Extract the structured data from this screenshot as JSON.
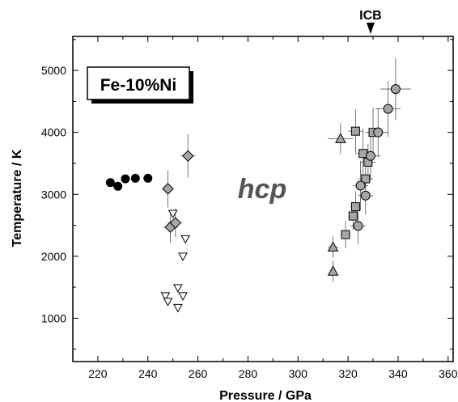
{
  "chart_data": {
    "type": "scatter",
    "xlabel": "Pressure / GPa",
    "ylabel": "Temperature / K",
    "xlim": [
      210,
      362
    ],
    "ylim": [
      300,
      5550
    ],
    "x_ticks": [
      220,
      240,
      260,
      280,
      300,
      320,
      340,
      360
    ],
    "y_ticks": [
      1000,
      2000,
      3000,
      4000,
      5000
    ],
    "grid": false,
    "legend": "none",
    "annotations": {
      "sample_box": "Fe-10%Ni",
      "phase_label": "hcp",
      "marker_label": "ICB",
      "marker_x": 329
    },
    "series": [
      {
        "marker": "filled-circle",
        "color": "#000000",
        "points": [
          {
            "x": 225,
            "y": 3190
          },
          {
            "x": 228,
            "y": 3130
          },
          {
            "x": 231,
            "y": 3250
          },
          {
            "x": 235,
            "y": 3260
          },
          {
            "x": 240,
            "y": 3260
          }
        ]
      },
      {
        "marker": "diamond",
        "color": "#a6a6a6",
        "points": [
          {
            "x": 248,
            "y": 3090,
            "xerr": 2,
            "yerr": 300
          },
          {
            "x": 249,
            "y": 2470,
            "xerr": 3,
            "yerr": 250
          },
          {
            "x": 251,
            "y": 2540,
            "xerr": 3,
            "yerr": 230
          },
          {
            "x": 256,
            "y": 3620,
            "xerr": 3,
            "yerr": 350
          }
        ]
      },
      {
        "marker": "open-triangle-down",
        "color": "#ffffff",
        "points": [
          {
            "x": 250,
            "y": 2690
          },
          {
            "x": 255,
            "y": 2280
          },
          {
            "x": 254,
            "y": 2000
          },
          {
            "x": 247,
            "y": 1360
          },
          {
            "x": 248,
            "y": 1270
          },
          {
            "x": 252,
            "y": 1490
          },
          {
            "x": 254,
            "y": 1360
          },
          {
            "x": 252,
            "y": 1170
          }
        ]
      },
      {
        "marker": "triangle-up",
        "color": "#a6a6a6",
        "points": [
          {
            "x": 314,
            "y": 1760,
            "xerr": 1,
            "yerr": 170
          },
          {
            "x": 314,
            "y": 2150,
            "xerr": 2,
            "yerr": 170
          },
          {
            "x": 317,
            "y": 3900,
            "xerr": 5,
            "yerr": 250
          }
        ]
      },
      {
        "marker": "square",
        "color": "#a6a6a6",
        "points": [
          {
            "x": 319,
            "y": 2350,
            "xerr": 2,
            "yerr": 220
          },
          {
            "x": 322,
            "y": 2650,
            "xerr": 2,
            "yerr": 220
          },
          {
            "x": 323,
            "y": 2800,
            "xerr": 2,
            "yerr": 250
          },
          {
            "x": 323,
            "y": 4020,
            "xerr": 3,
            "yerr": 350
          },
          {
            "x": 326,
            "y": 3660,
            "xerr": 3,
            "yerr": 400
          },
          {
            "x": 327,
            "y": 3250,
            "xerr": 3,
            "yerr": 250
          },
          {
            "x": 328,
            "y": 3520,
            "xerr": 3,
            "yerr": 300
          },
          {
            "x": 330,
            "y": 4000,
            "xerr": 3,
            "yerr": 400
          }
        ]
      },
      {
        "marker": "circle",
        "color": "#a6a6a6",
        "points": [
          {
            "x": 324,
            "y": 2490,
            "xerr": 3,
            "yerr": 300
          },
          {
            "x": 325,
            "y": 3140,
            "xerr": 3,
            "yerr": 400
          },
          {
            "x": 327,
            "y": 2980,
            "xerr": 3,
            "yerr": 300
          },
          {
            "x": 329,
            "y": 3620,
            "xerr": 4,
            "yerr": 400
          },
          {
            "x": 332,
            "y": 4000,
            "xerr": 4,
            "yerr": 400
          },
          {
            "x": 336,
            "y": 4380,
            "xerr": 5,
            "yerr": 450
          },
          {
            "x": 339,
            "y": 4700,
            "xerr": 6,
            "yerr": 500
          }
        ]
      }
    ]
  }
}
